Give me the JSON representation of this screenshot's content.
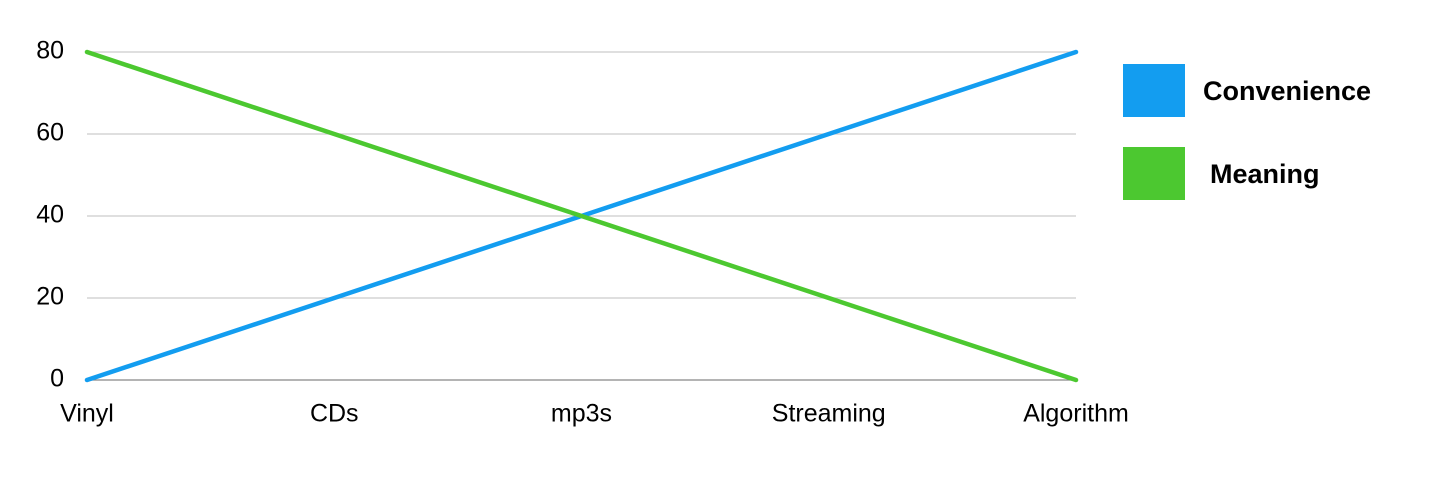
{
  "chart_data": {
    "type": "line",
    "categories": [
      "Vinyl",
      "CDs",
      "mp3s",
      "Streaming",
      "Algorithm"
    ],
    "series": [
      {
        "name": "Convenience",
        "color": "#139df0",
        "values": [
          0,
          20,
          40,
          60,
          80
        ]
      },
      {
        "name": "Meaning",
        "color": "#4cc830",
        "values": [
          80,
          60,
          40,
          20,
          0
        ]
      }
    ],
    "ylim": [
      0,
      80
    ],
    "yticks": [
      0,
      20,
      40,
      60,
      80
    ],
    "grid": true,
    "legend": "right"
  }
}
